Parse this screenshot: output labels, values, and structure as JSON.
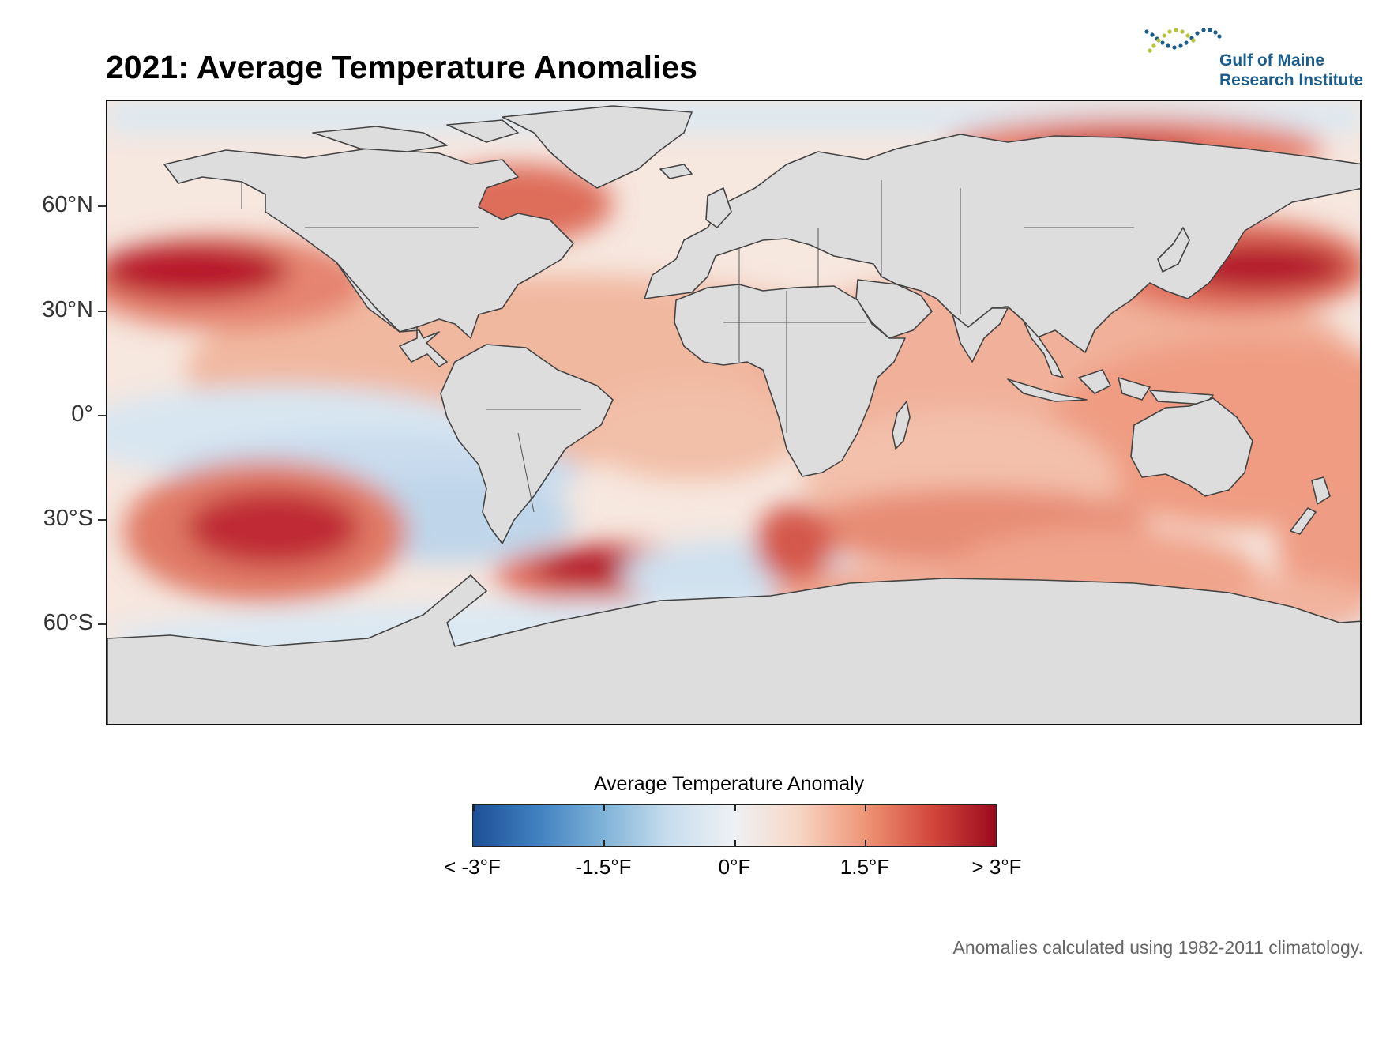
{
  "title": "2021: Average Temperature Anomalies",
  "logo": {
    "line1": "Gulf of Maine",
    "line2": "Research Institute",
    "text_color": "#1a5c8c",
    "dot_colors": [
      "#1a5c8c",
      "#b5c334"
    ]
  },
  "map": {
    "latitude_labels": [
      "60°N",
      "30°N",
      "0°",
      "30°S",
      "60°S"
    ],
    "land_color": "#dddddd",
    "coast_color": "#444444",
    "ocean_neutral_color": "#f4f4f4"
  },
  "legend": {
    "title": "Average Temperature Anomaly",
    "tick_labels": [
      "< -3°F",
      "-1.5°F",
      "0°F",
      "1.5°F",
      "> 3°F"
    ],
    "range": [
      -3,
      3
    ],
    "colors": [
      "#1d4f97",
      "#7fb3d8",
      "#eef1f4",
      "#ee9576",
      "#9b0a1e"
    ]
  },
  "footnote": "Anomalies calculated using 1982-2011 climatology."
}
